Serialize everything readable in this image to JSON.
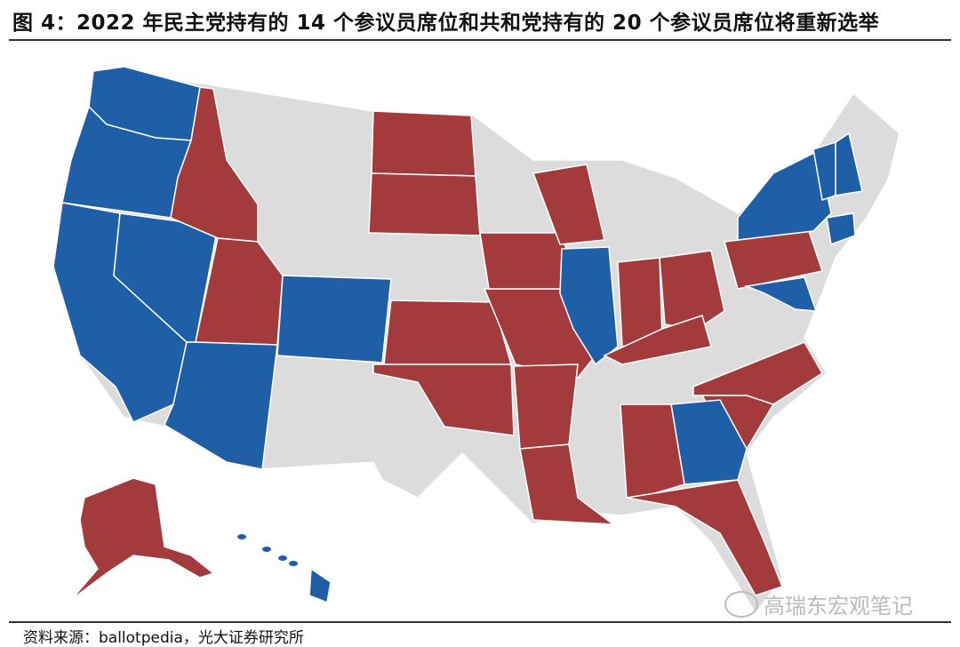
{
  "title": "图 4：2022 年民主党持有的 14 个参议员席位和共和党持有的 20 个参议员席位将重新选举",
  "source": "资料来源：ballotpedia，光大证券研究所",
  "watermark": "高瑞东宏观笔记",
  "colors": {
    "dem": "#1f5fa8",
    "rep": "#a33a3b",
    "none": "#dcdcdc",
    "border": "#ffffff"
  },
  "map_data": {
    "dem_seats_up": 14,
    "rep_seats_up": 20,
    "states": {
      "WA": "dem",
      "OR": "dem",
      "CA": "dem",
      "NV": "dem",
      "AZ": "dem",
      "CO": "dem",
      "IL": "dem",
      "NY": "dem",
      "VT": "dem",
      "NH": "dem",
      "CT": "dem",
      "MD": "dem",
      "GA": "dem",
      "HI": "dem",
      "ID": "rep",
      "UT": "rep",
      "ND": "rep",
      "SD": "rep",
      "KS": "rep",
      "OK": "rep",
      "MO": "rep",
      "AR": "rep",
      "LA": "rep",
      "IA": "rep",
      "WI": "rep",
      "IN": "rep",
      "OH": "rep",
      "KY": "rep",
      "PA": "rep",
      "NC": "rep",
      "SC": "rep",
      "AL": "rep",
      "FL": "rep",
      "AK": "rep"
    }
  }
}
